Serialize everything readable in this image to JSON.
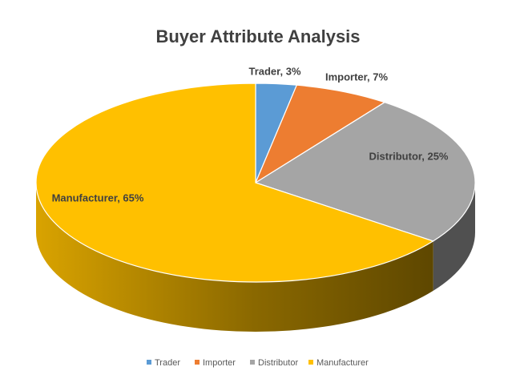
{
  "chart_data": {
    "type": "pie",
    "title": "Buyer Attribute Analysis",
    "categories": [
      "Trader",
      "Importer",
      "Distributor",
      "Manufacturer"
    ],
    "values": [
      3,
      7,
      25,
      65
    ],
    "value_labels": [
      "Trader, 3%",
      "Importer, 7%",
      "Distributor, 25%",
      "Manufacturer, 65%"
    ],
    "colors": [
      "#5b9bd5",
      "#ed7d31",
      "#a5a5a5",
      "#ffc000"
    ],
    "legend": "bottom"
  }
}
